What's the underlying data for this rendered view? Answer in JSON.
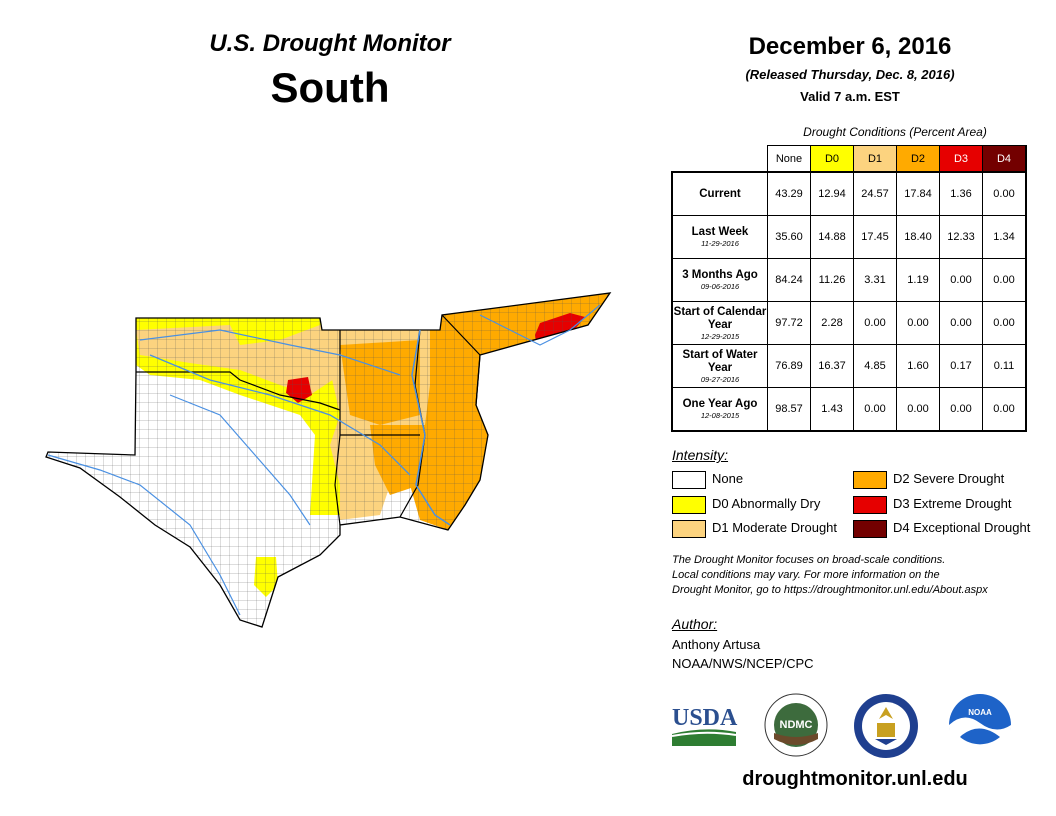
{
  "header": {
    "title": "U.S. Drought Monitor",
    "region": "South",
    "date": "December 6, 2016",
    "released": "(Released Thursday, Dec. 8, 2016)",
    "valid": "Valid 7 a.m. EST"
  },
  "table": {
    "title": "Drought Conditions (Percent Area)",
    "columns": [
      "None",
      "D0",
      "D1",
      "D2",
      "D3",
      "D4"
    ],
    "column_colors": [
      "#ffffff",
      "#ffff00",
      "#fcd37f",
      "#ffaa00",
      "#e60000",
      "#730000"
    ],
    "rows": [
      {
        "label": "Current",
        "date": "",
        "values": [
          "43.29",
          "12.94",
          "24.57",
          "17.84",
          "1.36",
          "0.00"
        ]
      },
      {
        "label": "Last Week",
        "date": "11-29-2016",
        "values": [
          "35.60",
          "14.88",
          "17.45",
          "18.40",
          "12.33",
          "1.34"
        ]
      },
      {
        "label": "3 Months Ago",
        "date": "09-06-2016",
        "values": [
          "84.24",
          "11.26",
          "3.31",
          "1.19",
          "0.00",
          "0.00"
        ]
      },
      {
        "label": "Start of Calendar Year",
        "date": "12-29-2015",
        "values": [
          "97.72",
          "2.28",
          "0.00",
          "0.00",
          "0.00",
          "0.00"
        ]
      },
      {
        "label": "Start of Water Year",
        "date": "09-27-2016",
        "values": [
          "76.89",
          "16.37",
          "4.85",
          "1.60",
          "0.17",
          "0.11"
        ]
      },
      {
        "label": "One Year Ago",
        "date": "12-08-2015",
        "values": [
          "98.57",
          "1.43",
          "0.00",
          "0.00",
          "0.00",
          "0.00"
        ]
      }
    ]
  },
  "legend": {
    "title": "Intensity:",
    "items": [
      {
        "label": "None",
        "color": "#ffffff"
      },
      {
        "label": "D0 Abnormally Dry",
        "color": "#ffff00"
      },
      {
        "label": "D1 Moderate Drought",
        "color": "#fcd37f"
      },
      {
        "label": "D2 Severe Drought",
        "color": "#ffaa00"
      },
      {
        "label": "D3 Extreme Drought",
        "color": "#e60000"
      },
      {
        "label": "D4 Exceptional Drought",
        "color": "#730000"
      }
    ]
  },
  "disclaimer": {
    "line1": "The Drought Monitor focuses on broad-scale conditions.",
    "line2": "Local conditions may vary. For more information on the",
    "line3": "Drought Monitor, go to https://droughtmonitor.unl.edu/About.aspx"
  },
  "author": {
    "title": "Author:",
    "name": "Anthony Artusa",
    "org": "NOAA/NWS/NCEP/CPC"
  },
  "logos": {
    "usda": "USDA",
    "ndmc": "NDMC",
    "noaa": "NOAA"
  },
  "footer": {
    "site": "droughtmonitor.unl.edu"
  }
}
